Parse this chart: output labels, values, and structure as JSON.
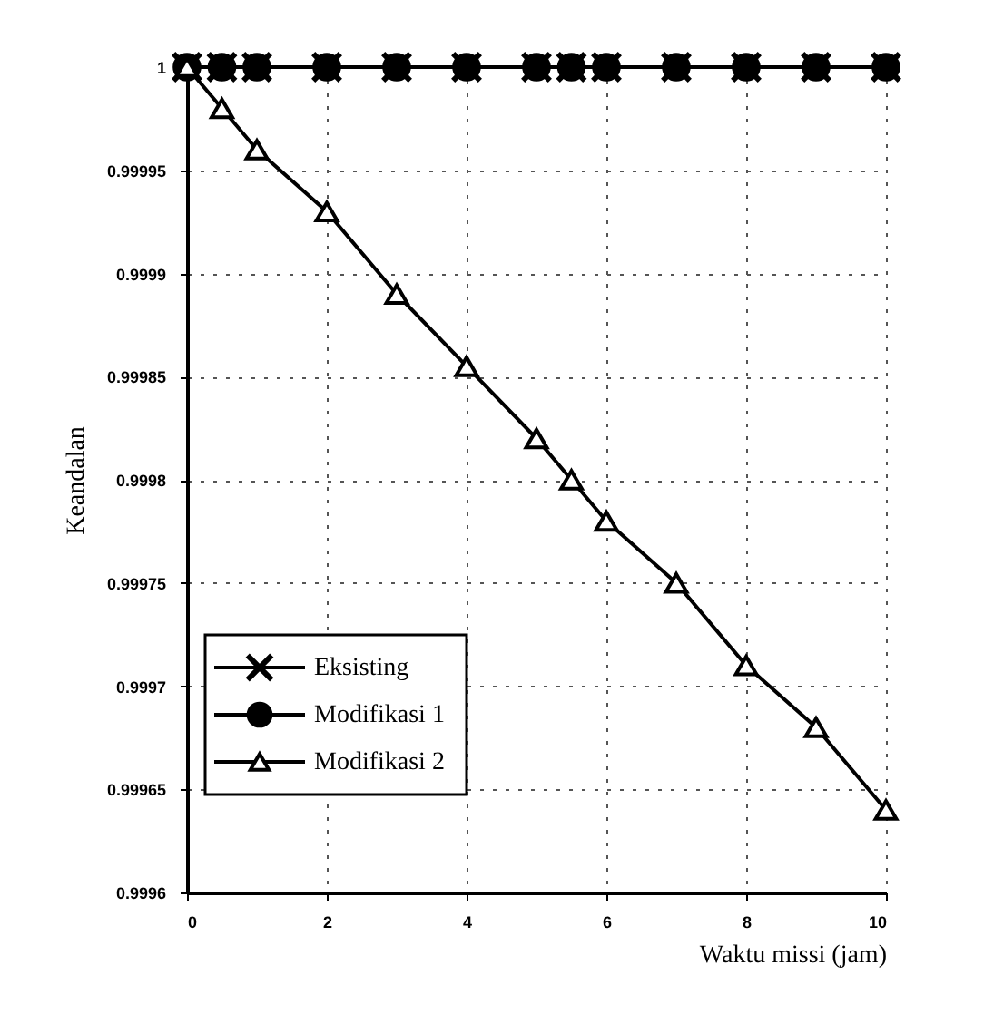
{
  "chart_data": {
    "type": "line",
    "xlabel": "Waktu missi (jam)",
    "ylabel": "Keandalan",
    "x": [
      0,
      0.5,
      1,
      2,
      3,
      4,
      5,
      5.5,
      6,
      7,
      8,
      9,
      10
    ],
    "series": [
      {
        "name": "Eksisting",
        "color": "#000000",
        "marker": "cross",
        "values": [
          1,
          1,
          1,
          1,
          1,
          1,
          1,
          1,
          1,
          1,
          1,
          1,
          1
        ]
      },
      {
        "name": "Modifikasi 1",
        "color": "#000000",
        "marker": "circle",
        "values": [
          1,
          1,
          1,
          1,
          1,
          1,
          1,
          1,
          1,
          1,
          1,
          1,
          1
        ]
      },
      {
        "name": "Modifikasi 2",
        "color": "#000000",
        "marker": "triangle",
        "values": [
          1,
          0.99998,
          0.99996,
          0.99993,
          0.99989,
          0.999855,
          0.99982,
          0.9998,
          0.99978,
          0.99975,
          0.99971,
          0.99968,
          0.99964
        ]
      }
    ],
    "xlim": [
      0,
      10
    ],
    "xticks": [
      0,
      2,
      4,
      6,
      8,
      10
    ],
    "ylim": [
      0.9996,
      1
    ],
    "yticks": [
      0.9996,
      0.99965,
      0.9997,
      0.99975,
      0.9998,
      0.99985,
      0.9999,
      0.99995,
      1
    ],
    "grid": true,
    "legend": "left",
    "line_style": "solid"
  }
}
